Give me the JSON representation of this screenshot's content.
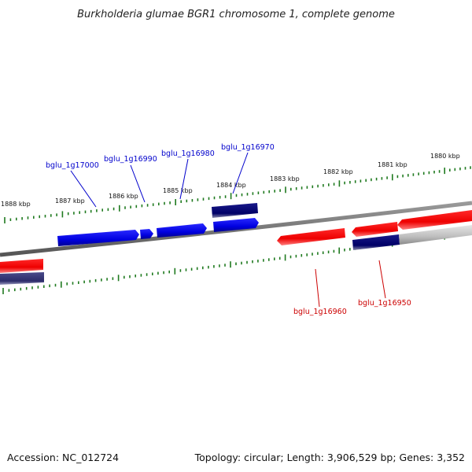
{
  "title": "Burkholderia glumae BGR1 chromosome 1, complete genome",
  "footer": {
    "accession": "Accession: NC_012724",
    "summary": "Topology: circular; Length: 3,906,529 bp; Genes: 3,352"
  },
  "colors": {
    "backbone": "#777777",
    "tick": "#1f7a1f",
    "forward_gene": "#0000ee",
    "forward_gene_dark": "#000080",
    "reverse_gene": "#ee0000",
    "reverse_gene_dark": "#3a3a7a",
    "forward_label": "#0000cc",
    "reverse_label": "#cc0000",
    "other_gene": "#bbbbbb"
  },
  "ticks": [
    "1888 kbp",
    "1887 kbp",
    "1886 kbp",
    "1885 kbp",
    "1884 kbp",
    "1883 kbp",
    "1882 kbp",
    "1881 kbp",
    "1880 kbp"
  ],
  "forward_labels": [
    "bglu_1g17000",
    "bglu_1g16990",
    "bglu_1g16980",
    "bglu_1g16970"
  ],
  "reverse_labels": [
    "bglu_1g16960",
    "bglu_1g16950"
  ]
}
